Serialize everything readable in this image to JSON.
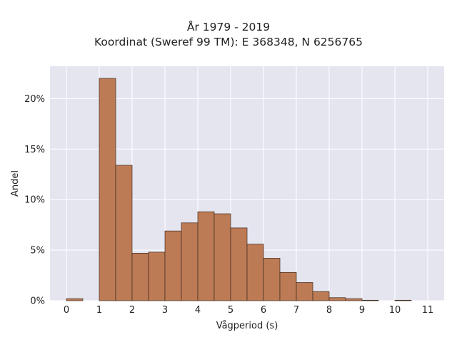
{
  "chart_data": {
    "type": "bar",
    "title": "År 1979 - 2019",
    "subtitle": "Koordinat (Sweref 99 TM): E 368348, N 6256765",
    "xlabel": "Vågperiod (s)",
    "ylabel": "Andel",
    "bin_width": 0.5,
    "bins": [
      {
        "start": 0.0,
        "value": 0.2
      },
      {
        "start": 1.0,
        "value": 22.0
      },
      {
        "start": 1.5,
        "value": 13.4
      },
      {
        "start": 2.0,
        "value": 4.7
      },
      {
        "start": 2.5,
        "value": 4.8
      },
      {
        "start": 3.0,
        "value": 6.9
      },
      {
        "start": 3.5,
        "value": 7.7
      },
      {
        "start": 4.0,
        "value": 8.8
      },
      {
        "start": 4.5,
        "value": 8.6
      },
      {
        "start": 5.0,
        "value": 7.2
      },
      {
        "start": 5.5,
        "value": 5.6
      },
      {
        "start": 6.0,
        "value": 4.2
      },
      {
        "start": 6.5,
        "value": 2.8
      },
      {
        "start": 7.0,
        "value": 1.8
      },
      {
        "start": 7.5,
        "value": 0.9
      },
      {
        "start": 8.0,
        "value": 0.3
      },
      {
        "start": 8.5,
        "value": 0.2
      },
      {
        "start": 9.0,
        "value": 0.05
      },
      {
        "start": 10.0,
        "value": 0.05
      }
    ],
    "xlim": [
      -0.5,
      11.5
    ],
    "ylim": [
      0,
      23.2
    ],
    "x_ticks": [
      "0",
      "1",
      "2",
      "3",
      "4",
      "5",
      "6",
      "7",
      "8",
      "9",
      "10",
      "11"
    ],
    "y_ticks": [
      "0%",
      "5%",
      "10%",
      "15%",
      "20%"
    ],
    "grid": true,
    "colors": {
      "bar_fill": "#bd7b55",
      "bar_edge": "#3d2a1e",
      "plot_background": "#e5e5f0",
      "grid": "#ffffff"
    }
  }
}
